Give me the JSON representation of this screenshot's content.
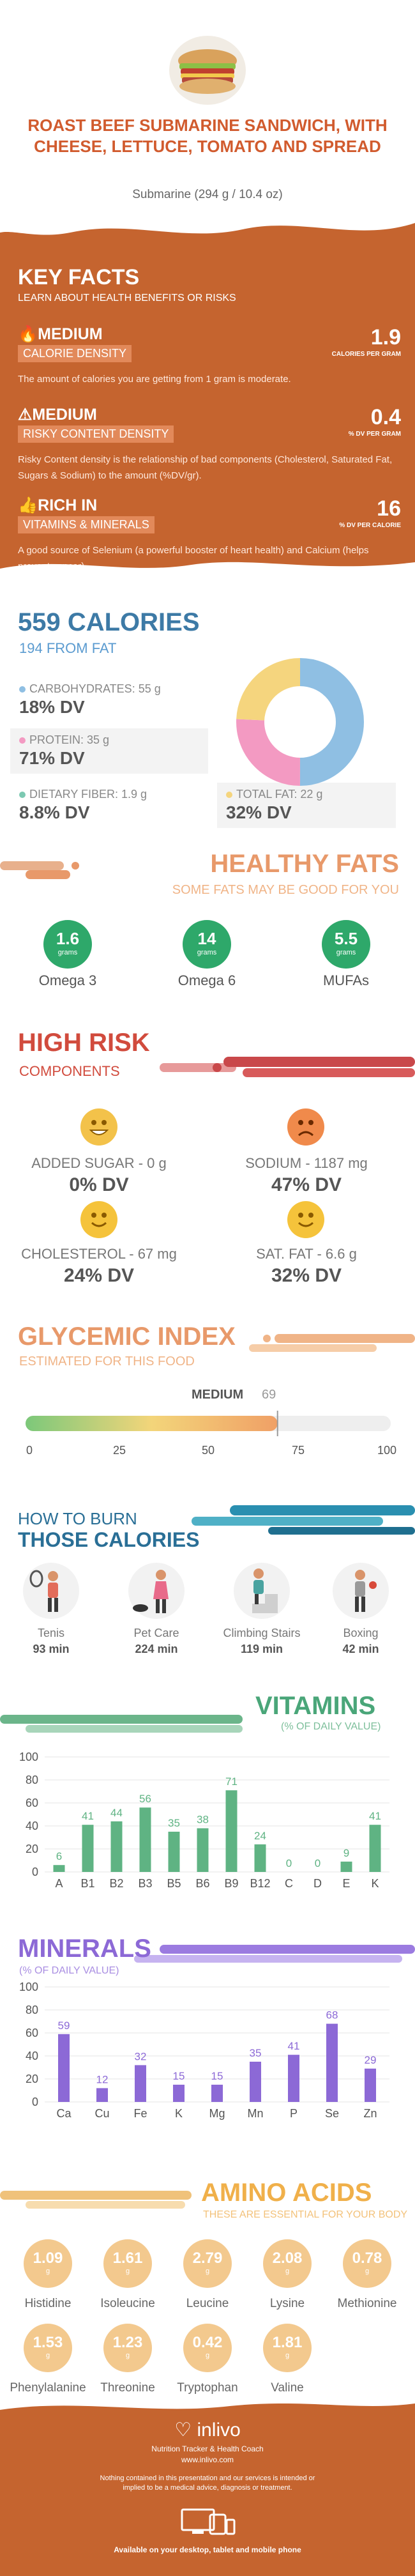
{
  "header": {
    "title": "ROAST BEEF SUBMARINE SANDWICH, WITH CHEESE, LETTUCE, TOMATO AND SPREAD",
    "serving": "Submarine (294 g / 10.4 oz)"
  },
  "key_facts": {
    "title": "KEY FACTS",
    "subtitle": "LEARN ABOUT HEALTH BENEFITS OR RISKS",
    "facts": [
      {
        "level": "MEDIUM",
        "name": "CALORIE DENSITY",
        "value": "1.9",
        "unit": "CALORIES PER GRAM",
        "desc": "The amount of calories you are getting from 1 gram is moderate."
      },
      {
        "level": "MEDIUM",
        "name": "RISKY CONTENT DENSITY",
        "value": "0.4",
        "unit": "% DV PER GRAM",
        "desc": "Risky Content density is the relationship of bad components (Cholesterol, Saturated Fat, Sugars & Sodium) to the amount (%DV/gr)."
      },
      {
        "level": "RICH  IN",
        "name": "VITAMINS & MINERALS",
        "value": "16",
        "unit": "% DV PER CALORIE",
        "desc": "A good source of Selenium (a powerful booster of heart health) and Calcium (helps prevent cancer)."
      }
    ]
  },
  "calories": {
    "title": "559 CALORIES",
    "from_fat": "194 FROM FAT",
    "nutrients": [
      {
        "label": "CARBOHYDRATES: 55 g",
        "dv": "18% DV",
        "color": "#8fbfe3"
      },
      {
        "label": "PROTEIN: 35 g",
        "dv": "71% DV",
        "color": "#f39ac2"
      },
      {
        "label": "DIETARY FIBER: 1.9 g",
        "dv": "8.8% DV",
        "color": "#7cc9b2"
      },
      {
        "label": "TOTAL FAT: 22 g",
        "dv": "32% DV",
        "color": "#f5d57e"
      }
    ]
  },
  "healthy_fats": {
    "title": "HEALTHY FATS",
    "subtitle": "SOME FATS MAY BE GOOD FOR YOU",
    "items": [
      {
        "value": "1.6",
        "unit": "grams",
        "label": "Omega 3"
      },
      {
        "value": "14",
        "unit": "grams",
        "label": "Omega 6"
      },
      {
        "value": "5.5",
        "unit": "grams",
        "label": "MUFAs"
      }
    ]
  },
  "high_risk": {
    "title": "HIGH RISK",
    "subtitle": "COMPONENTS",
    "items": [
      {
        "label": "ADDED SUGAR - 0 g",
        "dv": "0% DV",
        "face": "happy-face-icon",
        "color": "#f3c24a"
      },
      {
        "label": "SODIUM - 1187 mg",
        "dv": "47% DV",
        "face": "sad-face-icon",
        "color": "#f08a4b"
      },
      {
        "label": "CHOLESTEROL - 67 mg",
        "dv": "24% DV",
        "face": "smile-face-icon",
        "color": "#f5c33b"
      },
      {
        "label": "SAT. FAT - 6.6 g",
        "dv": "32% DV",
        "face": "smile-face-icon",
        "color": "#f5c33b"
      }
    ]
  },
  "glycemic": {
    "title": "GLYCEMIC INDEX",
    "subtitle": "ESTIMATED FOR THIS FOOD",
    "level": "MEDIUM",
    "value": "69",
    "fraction": 0.69,
    "ticks": [
      "0",
      "25",
      "50",
      "75",
      "100"
    ]
  },
  "burn": {
    "title1": "HOW TO BURN",
    "title2": "THOSE CALORIES",
    "activities": [
      {
        "name": "Tenis",
        "minutes": "93 min",
        "icon": "tennis-player-icon"
      },
      {
        "name": "Pet Care",
        "minutes": "224 min",
        "icon": "dog-walker-icon"
      },
      {
        "name": "Climbing Stairs",
        "minutes": "119 min",
        "icon": "stairs-climber-icon"
      },
      {
        "name": "Boxing",
        "minutes": "42 min",
        "icon": "boxer-icon"
      }
    ]
  },
  "chart_data": [
    {
      "type": "bar",
      "title": "VITAMINS",
      "subtitle": "(% OF DAILY VALUE)",
      "categories": [
        "A",
        "B1",
        "B2",
        "B3",
        "B5",
        "B6",
        "B9",
        "B12",
        "C",
        "D",
        "E",
        "K"
      ],
      "values": [
        6,
        41,
        44,
        56,
        35,
        38,
        71,
        24,
        0,
        0,
        9,
        41
      ],
      "yticks": [
        "0",
        "20",
        "40",
        "60",
        "80",
        "100"
      ],
      "ylim": [
        0,
        100
      ],
      "color": "#5fb383"
    },
    {
      "type": "bar",
      "title": "MINERALS",
      "subtitle": "(% OF DAILY VALUE)",
      "categories": [
        "Ca",
        "Cu",
        "Fe",
        "K",
        "Mg",
        "Mn",
        "P",
        "Se",
        "Zn"
      ],
      "values": [
        59,
        12,
        32,
        15,
        15,
        35,
        41,
        68,
        29
      ],
      "yticks": [
        "0",
        "20",
        "40",
        "60",
        "80",
        "100"
      ],
      "ylim": [
        0,
        100
      ],
      "color": "#8c69d6"
    }
  ],
  "amino": {
    "title": "AMINO ACIDS",
    "subtitle": "THESE ARE ESSENTIAL FOR YOUR BODY",
    "items": [
      {
        "value": "1.09",
        "unit": "g",
        "label": "Histidine"
      },
      {
        "value": "1.61",
        "unit": "g",
        "label": "Isoleucine"
      },
      {
        "value": "2.79",
        "unit": "g",
        "label": "Leucine"
      },
      {
        "value": "2.08",
        "unit": "g",
        "label": "Lysine"
      },
      {
        "value": "0.78",
        "unit": "g",
        "label": "Methionine"
      },
      {
        "value": "1.53",
        "unit": "g",
        "label": "Phenylalanine"
      },
      {
        "value": "1.23",
        "unit": "g",
        "label": "Threonine"
      },
      {
        "value": "0.42",
        "unit": "g",
        "label": "Tryptophan"
      },
      {
        "value": "1.81",
        "unit": "g",
        "label": "Valine"
      }
    ]
  },
  "footer": {
    "brand": "inlivo",
    "tagline": "Nutrition Tracker & Health Coach",
    "url": "www.inlivo.com",
    "disclaimer": "Nothing contained in this presentation and our services is intended or implied to be a medical advice, diagnosis or treatment.",
    "available": "Available on your desktop, tablet and mobile phone"
  }
}
